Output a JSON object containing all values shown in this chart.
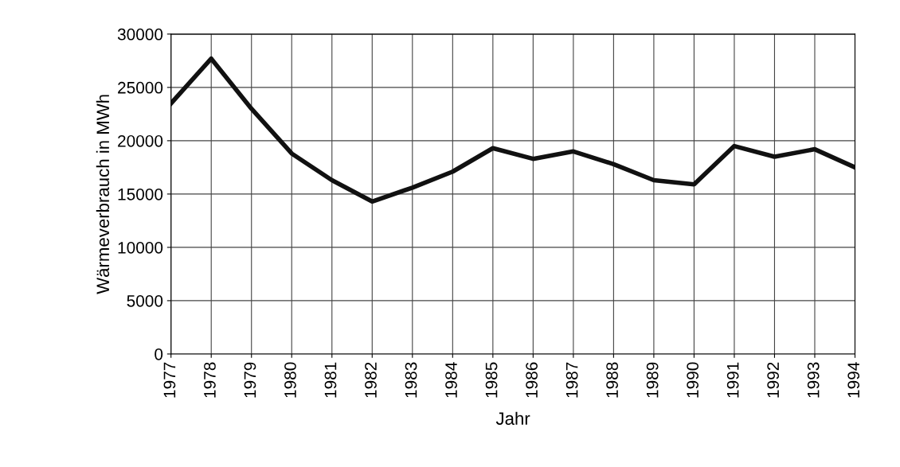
{
  "chart_data": {
    "type": "line",
    "xlabel": "Jahr",
    "ylabel": "Wärmeverbrauch in MWh",
    "x": [
      1977,
      1978,
      1979,
      1980,
      1981,
      1982,
      1983,
      1984,
      1985,
      1986,
      1987,
      1988,
      1989,
      1990,
      1991,
      1992,
      1993,
      1994
    ],
    "series": [
      {
        "color": "#111111",
        "values": [
          23500,
          27700,
          23000,
          18800,
          16300,
          14300,
          15600,
          17100,
          19300,
          18300,
          19000,
          17800,
          16300,
          15900,
          19500,
          18500,
          19200,
          17500
        ]
      }
    ],
    "xlim": [
      1977,
      1994
    ],
    "xticks": [
      1977,
      1978,
      1979,
      1980,
      1981,
      1982,
      1983,
      1984,
      1985,
      1986,
      1987,
      1988,
      1989,
      1990,
      1991,
      1992,
      1993,
      1994
    ],
    "ylim": [
      0,
      30000
    ],
    "yticks": [
      0,
      5000,
      10000,
      15000,
      20000,
      25000,
      30000
    ],
    "grid": true,
    "legend": false,
    "marker": "none",
    "line_style": "solid"
  }
}
